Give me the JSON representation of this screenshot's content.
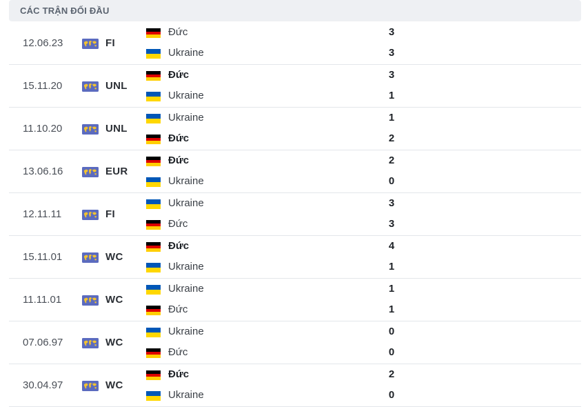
{
  "header": {
    "title": "CÁC TRẬN ĐỐI ĐẦU"
  },
  "colors": {
    "germany": [
      "#000000",
      "#dd0000",
      "#ffce00"
    ],
    "ukraine": [
      "#0057b7",
      "#ffd700"
    ],
    "comp_icon_bg": "#5b6bbf",
    "comp_icon_fg": "#f2c230"
  },
  "icons": {
    "competition": "world-map-icon"
  },
  "matches": [
    {
      "date": "12.06.23",
      "competition": "FI",
      "team1": {
        "name": "Đức",
        "flag": "germany",
        "winner": false,
        "score": "3"
      },
      "team2": {
        "name": "Ukraine",
        "flag": "ukraine",
        "winner": false,
        "score": "3"
      }
    },
    {
      "date": "15.11.20",
      "competition": "UNL",
      "team1": {
        "name": "Đức",
        "flag": "germany",
        "winner": true,
        "score": "3"
      },
      "team2": {
        "name": "Ukraine",
        "flag": "ukraine",
        "winner": false,
        "score": "1"
      }
    },
    {
      "date": "11.10.20",
      "competition": "UNL",
      "team1": {
        "name": "Ukraine",
        "flag": "ukraine",
        "winner": false,
        "score": "1"
      },
      "team2": {
        "name": "Đức",
        "flag": "germany",
        "winner": true,
        "score": "2"
      }
    },
    {
      "date": "13.06.16",
      "competition": "EUR",
      "team1": {
        "name": "Đức",
        "flag": "germany",
        "winner": true,
        "score": "2"
      },
      "team2": {
        "name": "Ukraine",
        "flag": "ukraine",
        "winner": false,
        "score": "0"
      }
    },
    {
      "date": "12.11.11",
      "competition": "FI",
      "team1": {
        "name": "Ukraine",
        "flag": "ukraine",
        "winner": false,
        "score": "3"
      },
      "team2": {
        "name": "Đức",
        "flag": "germany",
        "winner": false,
        "score": "3"
      }
    },
    {
      "date": "15.11.01",
      "competition": "WC",
      "team1": {
        "name": "Đức",
        "flag": "germany",
        "winner": true,
        "score": "4"
      },
      "team2": {
        "name": "Ukraine",
        "flag": "ukraine",
        "winner": false,
        "score": "1"
      }
    },
    {
      "date": "11.11.01",
      "competition": "WC",
      "team1": {
        "name": "Ukraine",
        "flag": "ukraine",
        "winner": false,
        "score": "1"
      },
      "team2": {
        "name": "Đức",
        "flag": "germany",
        "winner": false,
        "score": "1"
      }
    },
    {
      "date": "07.06.97",
      "competition": "WC",
      "team1": {
        "name": "Ukraine",
        "flag": "ukraine",
        "winner": false,
        "score": "0"
      },
      "team2": {
        "name": "Đức",
        "flag": "germany",
        "winner": false,
        "score": "0"
      }
    },
    {
      "date": "30.04.97",
      "competition": "WC",
      "team1": {
        "name": "Đức",
        "flag": "germany",
        "winner": true,
        "score": "2"
      },
      "team2": {
        "name": "Ukraine",
        "flag": "ukraine",
        "winner": false,
        "score": "0"
      }
    }
  ]
}
